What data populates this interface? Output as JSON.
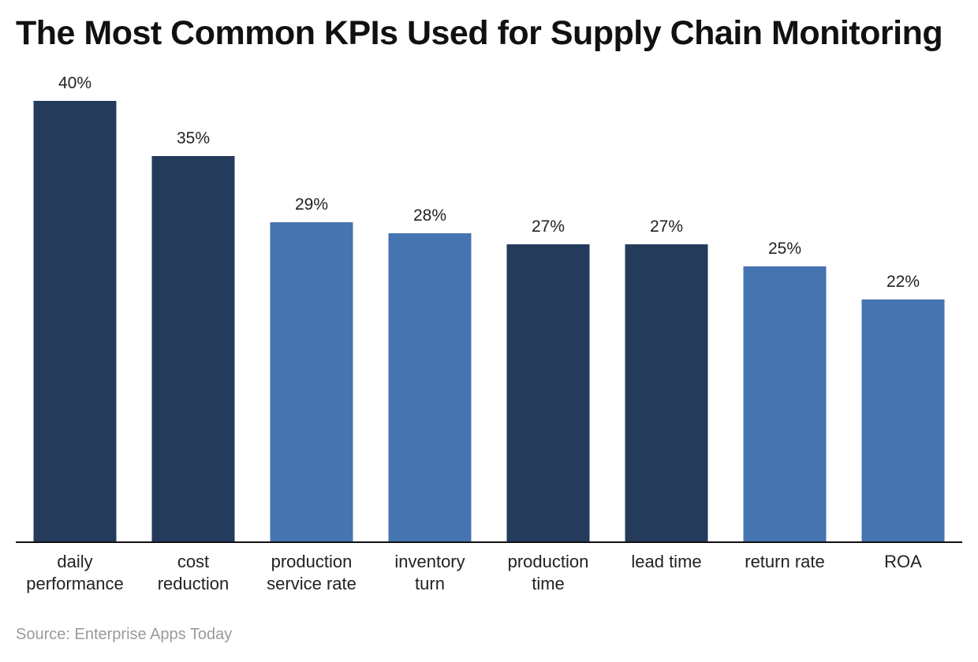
{
  "source": "Source: Enterprise Apps Today",
  "colors": {
    "dark_bar": "#243b5c",
    "light_bar": "#4674b0",
    "axis": "#111111",
    "label_text": "#222222"
  },
  "chart_data": {
    "type": "bar",
    "title": "The Most Common KPIs Used for Supply Chain Monitoring",
    "xlabel": "",
    "ylabel": "",
    "categories": [
      [
        "daily",
        "performance"
      ],
      [
        "cost",
        "reduction"
      ],
      [
        "production",
        "service rate"
      ],
      [
        "inventory",
        "turn"
      ],
      [
        "production",
        "time"
      ],
      [
        "lead time"
      ],
      [
        "return rate"
      ],
      [
        "ROA"
      ]
    ],
    "values": [
      40,
      35,
      29,
      28,
      27,
      27,
      25,
      22
    ],
    "value_labels": [
      "40%",
      "35%",
      "29%",
      "28%",
      "27%",
      "27%",
      "25%",
      "22%"
    ],
    "bar_colors": [
      "dark",
      "dark",
      "light",
      "light",
      "dark",
      "dark",
      "light",
      "light"
    ],
    "ylim": [
      0,
      40
    ],
    "grid": false,
    "legend": "none"
  }
}
